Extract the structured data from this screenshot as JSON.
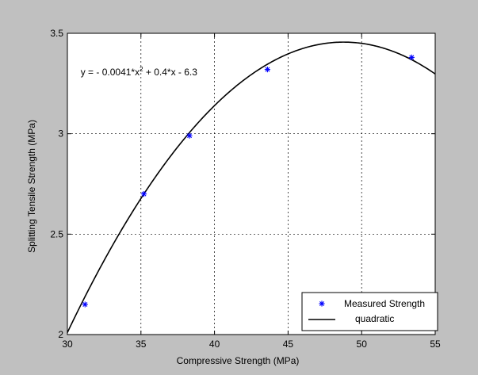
{
  "figure": {
    "background": "#c0c0c0",
    "axes_background": "#ffffff"
  },
  "chart_data": {
    "type": "scatter",
    "title": "",
    "xlabel": "Compressive Strength (MPa)",
    "ylabel": "Splitting Tensile Strength (MPa)",
    "xlim": [
      30,
      55
    ],
    "ylim": [
      2,
      3.5
    ],
    "xticks": [
      30,
      35,
      40,
      45,
      50,
      55
    ],
    "yticks": [
      2,
      2.5,
      3,
      3.5
    ],
    "xtick_labels": [
      "30",
      "35",
      "40",
      "45",
      "50",
      "55"
    ],
    "ytick_labels": [
      "2",
      "2.5",
      "3",
      "3.5"
    ],
    "grid": true,
    "legend_position": "bottom-right",
    "annotation": {
      "prefix": "y = - 0.0041*x",
      "exponent": "2",
      "suffix": " + 0.4*x - 6.3",
      "x": 30.9,
      "y": 3.29
    },
    "series": [
      {
        "name": "Measured Strength",
        "kind": "scatter",
        "marker": "*",
        "color": "#0000ff",
        "x": [
          31.2,
          35.2,
          38.3,
          43.6,
          53.4
        ],
        "y": [
          2.15,
          2.7,
          2.99,
          3.32,
          3.38
        ]
      },
      {
        "name": "quadratic",
        "kind": "line",
        "color": "#000000",
        "coefficients": {
          "a": -0.0041,
          "b": 0.4,
          "c": -6.3
        }
      }
    ]
  }
}
